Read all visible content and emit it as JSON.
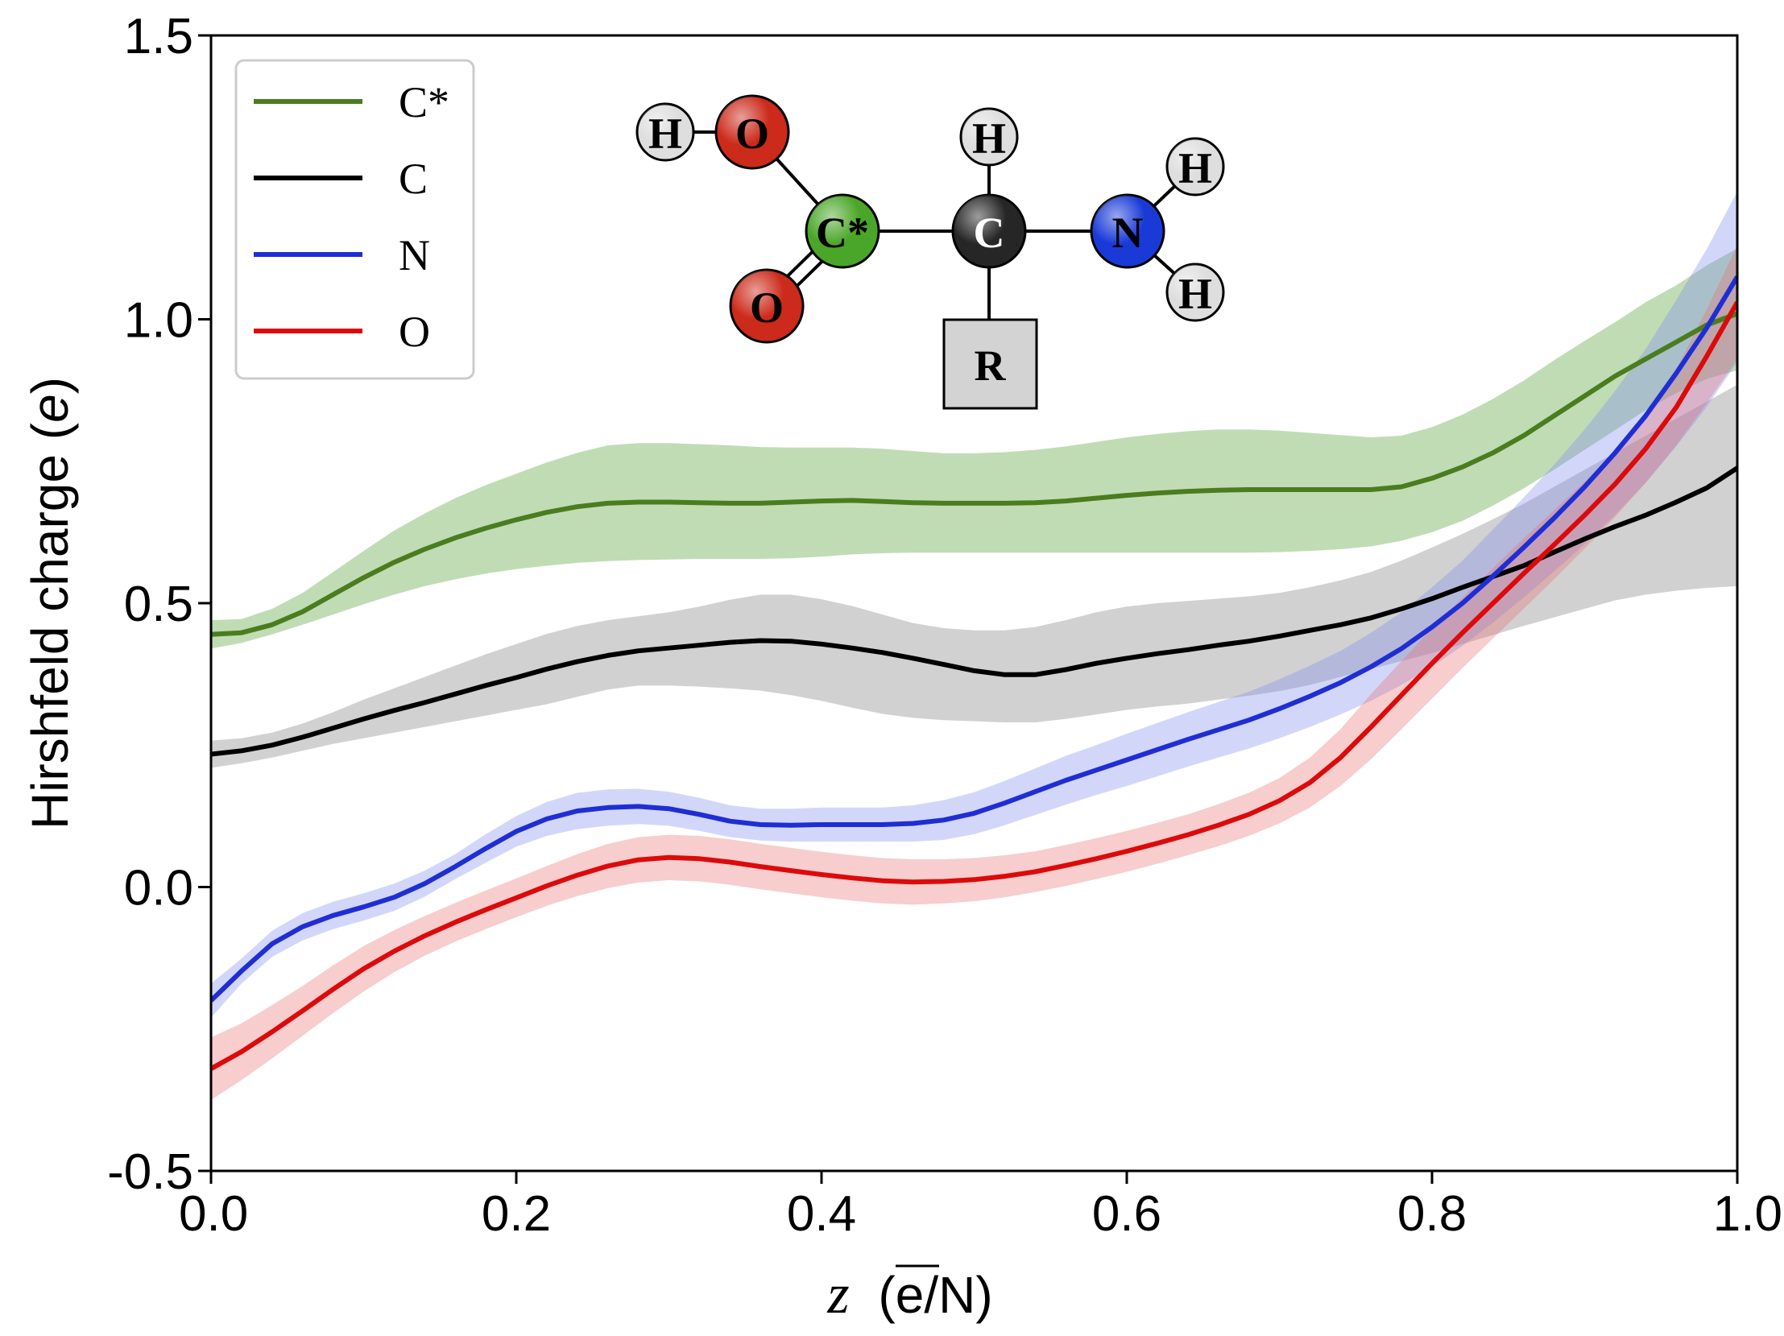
{
  "chart_data": {
    "type": "line",
    "title": "",
    "xlabel_symbol": "z",
    "xlabel_unit": "(e/N)",
    "ylabel_main": "Hirshfeld charge (",
    "ylabel_italic": "e",
    "ylabel_end": ")",
    "xlim": [
      0.0,
      1.0
    ],
    "ylim": [
      -0.5,
      1.5
    ],
    "x_ticks": [
      0.0,
      0.2,
      0.4,
      0.6,
      0.8,
      1.0
    ],
    "x_tick_labels": [
      "0.0",
      "0.2",
      "0.4",
      "0.6",
      "0.8",
      "1.0"
    ],
    "y_ticks": [
      -0.5,
      0.0,
      0.5,
      1.0,
      1.5
    ],
    "y_tick_labels": [
      "-0.5",
      "0.0",
      "0.5",
      "1.0",
      "1.5"
    ],
    "legend_position": "top-left",
    "grid": false,
    "x": [
      0.0,
      0.02,
      0.04,
      0.06,
      0.08,
      0.1,
      0.12,
      0.14,
      0.16,
      0.18,
      0.2,
      0.22,
      0.24,
      0.26,
      0.28,
      0.3,
      0.32,
      0.34,
      0.36,
      0.38,
      0.4,
      0.42,
      0.44,
      0.46,
      0.48,
      0.5,
      0.52,
      0.54,
      0.56,
      0.58,
      0.6,
      0.62,
      0.64,
      0.66,
      0.68,
      0.7,
      0.72,
      0.74,
      0.76,
      0.78,
      0.8,
      0.82,
      0.84,
      0.86,
      0.88,
      0.9,
      0.92,
      0.94,
      0.96,
      0.98,
      1.0
    ],
    "series": [
      {
        "name": "C*",
        "color": "#4a7d1e",
        "band_color": "#4a9a2a",
        "values": [
          0.445,
          0.448,
          0.462,
          0.485,
          0.515,
          0.545,
          0.572,
          0.595,
          0.615,
          0.632,
          0.647,
          0.66,
          0.67,
          0.676,
          0.678,
          0.678,
          0.677,
          0.676,
          0.676,
          0.678,
          0.68,
          0.681,
          0.679,
          0.677,
          0.676,
          0.676,
          0.676,
          0.677,
          0.68,
          0.685,
          0.69,
          0.694,
          0.697,
          0.699,
          0.7,
          0.7,
          0.7,
          0.7,
          0.7,
          0.705,
          0.72,
          0.74,
          0.765,
          0.795,
          0.83,
          0.865,
          0.9,
          0.93,
          0.96,
          0.99,
          1.01
        ],
        "band_lower": [
          0.42,
          0.43,
          0.445,
          0.462,
          0.48,
          0.498,
          0.515,
          0.53,
          0.542,
          0.552,
          0.56,
          0.566,
          0.571,
          0.574,
          0.576,
          0.577,
          0.578,
          0.578,
          0.578,
          0.579,
          0.582,
          0.586,
          0.588,
          0.589,
          0.589,
          0.589,
          0.589,
          0.589,
          0.589,
          0.589,
          0.589,
          0.589,
          0.589,
          0.589,
          0.589,
          0.59,
          0.592,
          0.595,
          0.6,
          0.61,
          0.625,
          0.645,
          0.672,
          0.702,
          0.735,
          0.77,
          0.805,
          0.84,
          0.87,
          0.895,
          0.91
        ],
        "band_upper": [
          0.47,
          0.472,
          0.49,
          0.518,
          0.555,
          0.592,
          0.628,
          0.658,
          0.685,
          0.708,
          0.728,
          0.748,
          0.765,
          0.778,
          0.782,
          0.782,
          0.78,
          0.778,
          0.775,
          0.774,
          0.774,
          0.774,
          0.772,
          0.768,
          0.764,
          0.764,
          0.766,
          0.77,
          0.776,
          0.784,
          0.792,
          0.798,
          0.803,
          0.806,
          0.806,
          0.804,
          0.8,
          0.796,
          0.792,
          0.795,
          0.81,
          0.832,
          0.86,
          0.892,
          0.928,
          0.962,
          0.995,
          1.03,
          1.06,
          1.095,
          1.125
        ]
      },
      {
        "name": "C",
        "color": "#000000",
        "band_color": "#7a7a7a",
        "values": [
          0.234,
          0.24,
          0.25,
          0.264,
          0.28,
          0.296,
          0.311,
          0.325,
          0.34,
          0.355,
          0.369,
          0.384,
          0.397,
          0.408,
          0.416,
          0.421,
          0.426,
          0.431,
          0.434,
          0.433,
          0.428,
          0.421,
          0.413,
          0.403,
          0.392,
          0.381,
          0.374,
          0.374,
          0.383,
          0.394,
          0.403,
          0.411,
          0.418,
          0.426,
          0.433,
          0.442,
          0.452,
          0.462,
          0.474,
          0.49,
          0.508,
          0.528,
          0.547,
          0.566,
          0.59,
          0.613,
          0.635,
          0.655,
          0.678,
          0.703,
          0.738
        ],
        "band_lower": [
          0.21,
          0.218,
          0.228,
          0.24,
          0.252,
          0.262,
          0.272,
          0.282,
          0.292,
          0.302,
          0.312,
          0.322,
          0.335,
          0.348,
          0.355,
          0.355,
          0.353,
          0.35,
          0.346,
          0.338,
          0.328,
          0.316,
          0.305,
          0.298,
          0.294,
          0.292,
          0.29,
          0.29,
          0.296,
          0.304,
          0.312,
          0.318,
          0.323,
          0.33,
          0.337,
          0.345,
          0.356,
          0.37,
          0.384,
          0.398,
          0.412,
          0.428,
          0.444,
          0.46,
          0.475,
          0.49,
          0.505,
          0.515,
          0.522,
          0.527,
          0.53
        ],
        "band_upper": [
          0.258,
          0.262,
          0.272,
          0.288,
          0.308,
          0.33,
          0.35,
          0.37,
          0.39,
          0.41,
          0.428,
          0.446,
          0.46,
          0.47,
          0.477,
          0.484,
          0.494,
          0.506,
          0.515,
          0.515,
          0.507,
          0.495,
          0.48,
          0.465,
          0.456,
          0.452,
          0.452,
          0.458,
          0.47,
          0.484,
          0.494,
          0.5,
          0.504,
          0.508,
          0.512,
          0.518,
          0.528,
          0.54,
          0.555,
          0.575,
          0.598,
          0.622,
          0.648,
          0.675,
          0.705,
          0.735,
          0.765,
          0.795,
          0.825,
          0.855,
          0.885
        ]
      },
      {
        "name": "N",
        "color": "#1f2ed4",
        "band_color": "#7f8cf0",
        "values": [
          -0.2,
          -0.148,
          -0.1,
          -0.07,
          -0.05,
          -0.035,
          -0.018,
          0.006,
          0.036,
          0.068,
          0.098,
          0.12,
          0.134,
          0.14,
          0.142,
          0.138,
          0.128,
          0.116,
          0.11,
          0.109,
          0.11,
          0.11,
          0.11,
          0.112,
          0.118,
          0.13,
          0.148,
          0.168,
          0.188,
          0.206,
          0.224,
          0.242,
          0.26,
          0.277,
          0.294,
          0.314,
          0.336,
          0.36,
          0.388,
          0.42,
          0.458,
          0.5,
          0.548,
          0.598,
          0.65,
          0.705,
          0.765,
          0.83,
          0.905,
          0.985,
          1.075
        ],
        "band_lower": [
          -0.23,
          -0.17,
          -0.123,
          -0.094,
          -0.074,
          -0.059,
          -0.042,
          -0.017,
          0.014,
          0.043,
          0.071,
          0.09,
          0.102,
          0.108,
          0.111,
          0.108,
          0.099,
          0.088,
          0.082,
          0.08,
          0.08,
          0.08,
          0.08,
          0.08,
          0.083,
          0.093,
          0.109,
          0.127,
          0.145,
          0.162,
          0.178,
          0.195,
          0.212,
          0.228,
          0.244,
          0.262,
          0.282,
          0.304,
          0.328,
          0.356,
          0.388,
          0.425,
          0.466,
          0.51,
          0.556,
          0.604,
          0.656,
          0.712,
          0.776,
          0.846,
          0.925
        ],
        "band_upper": [
          -0.17,
          -0.126,
          -0.077,
          -0.046,
          -0.026,
          -0.011,
          0.006,
          0.029,
          0.058,
          0.093,
          0.125,
          0.15,
          0.166,
          0.172,
          0.173,
          0.168,
          0.157,
          0.144,
          0.138,
          0.138,
          0.14,
          0.14,
          0.14,
          0.144,
          0.153,
          0.167,
          0.187,
          0.209,
          0.231,
          0.25,
          0.27,
          0.289,
          0.308,
          0.326,
          0.344,
          0.366,
          0.39,
          0.416,
          0.448,
          0.484,
          0.528,
          0.575,
          0.63,
          0.686,
          0.744,
          0.806,
          0.874,
          0.948,
          1.034,
          1.124,
          1.225
        ]
      },
      {
        "name": "O",
        "color": "#dc0a0a",
        "band_color": "#e87070",
        "values": [
          -0.32,
          -0.29,
          -0.255,
          -0.218,
          -0.18,
          -0.144,
          -0.113,
          -0.086,
          -0.062,
          -0.04,
          -0.019,
          0.002,
          0.021,
          0.037,
          0.048,
          0.052,
          0.05,
          0.044,
          0.036,
          0.029,
          0.022,
          0.016,
          0.011,
          0.009,
          0.01,
          0.013,
          0.019,
          0.027,
          0.038,
          0.05,
          0.063,
          0.077,
          0.092,
          0.109,
          0.128,
          0.152,
          0.184,
          0.228,
          0.282,
          0.338,
          0.394,
          0.448,
          0.5,
          0.552,
          0.603,
          0.655,
          0.71,
          0.772,
          0.845,
          0.935,
          1.03
        ],
        "band_lower": [
          -0.375,
          -0.34,
          -0.302,
          -0.262,
          -0.222,
          -0.184,
          -0.15,
          -0.121,
          -0.096,
          -0.074,
          -0.053,
          -0.033,
          -0.016,
          -0.002,
          0.008,
          0.012,
          0.01,
          0.004,
          -0.004,
          -0.011,
          -0.018,
          -0.024,
          -0.029,
          -0.031,
          -0.029,
          -0.025,
          -0.018,
          -0.009,
          0.002,
          0.014,
          0.027,
          0.041,
          0.056,
          0.072,
          0.09,
          0.112,
          0.14,
          0.178,
          0.225,
          0.278,
          0.332,
          0.386,
          0.438,
          0.49,
          0.542,
          0.596,
          0.652,
          0.712,
          0.778,
          0.852,
          0.93
        ],
        "band_upper": [
          -0.265,
          -0.24,
          -0.208,
          -0.174,
          -0.138,
          -0.104,
          -0.076,
          -0.051,
          -0.028,
          -0.006,
          0.015,
          0.037,
          0.058,
          0.076,
          0.088,
          0.092,
          0.09,
          0.084,
          0.076,
          0.069,
          0.062,
          0.056,
          0.051,
          0.049,
          0.049,
          0.051,
          0.056,
          0.063,
          0.074,
          0.086,
          0.099,
          0.113,
          0.128,
          0.146,
          0.166,
          0.192,
          0.228,
          0.278,
          0.34,
          0.398,
          0.456,
          0.51,
          0.562,
          0.614,
          0.664,
          0.714,
          0.768,
          0.832,
          0.912,
          1.018,
          1.13
        ]
      }
    ],
    "molecule_inset": {
      "atoms": [
        {
          "label": "H",
          "color": "#dedede",
          "text_color": "#000000"
        },
        {
          "label": "O",
          "color": "#cc2a1a",
          "text_color": "#000000"
        },
        {
          "label": "C*",
          "color": "#4aa628",
          "text_color": "#000000"
        },
        {
          "label": "O",
          "color": "#cc2a1a",
          "text_color": "#000000"
        },
        {
          "label": "H",
          "color": "#dedede",
          "text_color": "#000000"
        },
        {
          "label": "C",
          "color": "#262626",
          "text_color": "#ffffff"
        },
        {
          "label": "N",
          "color": "#1a3ad8",
          "text_color": "#000000"
        },
        {
          "label": "H",
          "color": "#dedede",
          "text_color": "#000000"
        },
        {
          "label": "H",
          "color": "#dedede",
          "text_color": "#000000"
        }
      ],
      "group_label": "R"
    }
  }
}
